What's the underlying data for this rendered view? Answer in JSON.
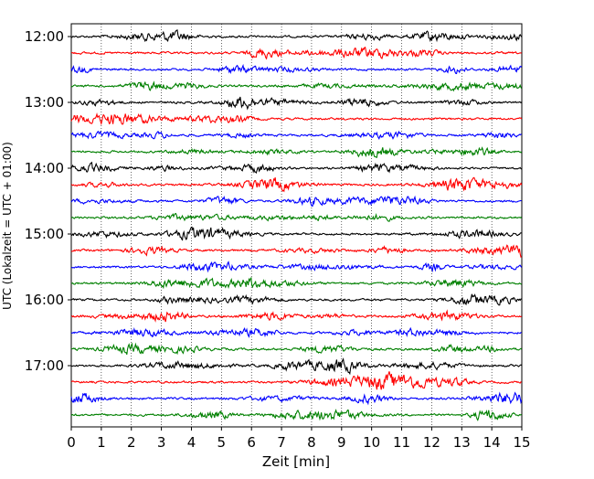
{
  "chart_data": {
    "type": "line",
    "title": "",
    "xlabel": "Zeit  [min]",
    "ylabel": "UTC (Lokalzeit = UTC + 01:00)",
    "xlim": [
      0,
      15
    ],
    "x_ticks": [
      "0",
      "1",
      "2",
      "3",
      "4",
      "5",
      "6",
      "7",
      "8",
      "9",
      "10",
      "11",
      "12",
      "13",
      "14",
      "15"
    ],
    "y_ticks": [
      "12:00",
      "13:00",
      "14:00",
      "15:00",
      "16:00",
      "17:00"
    ],
    "trace_interval_min": 15,
    "trace_count": 24,
    "first_trace": "12:00",
    "trace_colors": [
      "#000000",
      "#ff0000",
      "#0000ff",
      "#008000"
    ],
    "grid": "vertical dotted lines at each minute",
    "description": "seismogram drum plot: one 15-minute trace per row, colors cycling black, red, blue, green"
  }
}
